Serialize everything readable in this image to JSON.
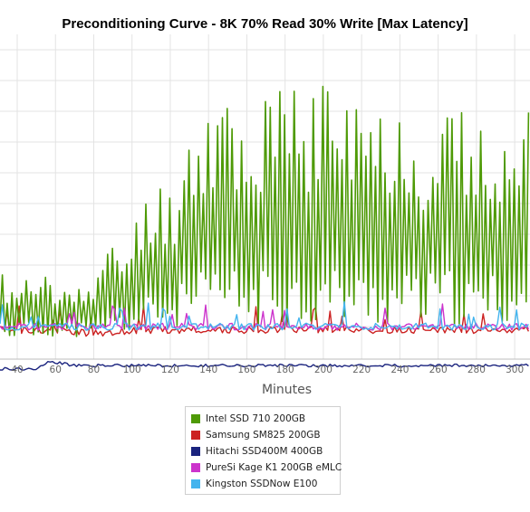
{
  "chart_data": {
    "type": "line",
    "title": "Preconditioning Curve - 8K 70% Read 30% Write [Max Latency]",
    "xlabel": "Minutes",
    "ylabel": "",
    "x_ticks": [
      40,
      60,
      80,
      100,
      120,
      140,
      160,
      180,
      200,
      220,
      240,
      260,
      280,
      300
    ],
    "xlim": [
      31,
      308
    ],
    "ylim": [
      0,
      100
    ],
    "grid": true,
    "legend_position": "bottom-center",
    "series": [
      {
        "name": "Intel SSD 710 200GB",
        "color": "#4e9a06",
        "x": [
          31,
          37,
          43,
          49,
          55,
          61,
          67,
          73,
          79,
          85,
          91,
          97,
          103,
          109,
          115,
          121,
          127,
          133,
          139,
          145,
          151,
          157,
          163,
          169,
          175,
          181,
          187,
          193,
          199,
          205,
          211,
          217,
          223,
          229,
          235,
          241,
          247,
          253,
          259,
          265,
          271,
          277,
          283,
          289,
          295,
          301,
          307
        ],
        "high": [
          28,
          22,
          26,
          24,
          27,
          20,
          25,
          27,
          22,
          31,
          38,
          35,
          45,
          57,
          56,
          52,
          68,
          80,
          79,
          85,
          88,
          78,
          73,
          82,
          83,
          83,
          86,
          80,
          92,
          88,
          82,
          81,
          76,
          82,
          81,
          80,
          72,
          73,
          83,
          84,
          80,
          66,
          72,
          78,
          74,
          72,
          78
        ],
        "low": [
          8,
          6,
          8,
          6,
          7,
          7,
          6,
          7,
          6,
          8,
          7,
          8,
          8,
          8,
          9,
          9,
          10,
          9,
          10,
          11,
          10,
          10,
          10,
          10,
          11,
          10,
          10,
          9,
          9,
          10,
          10,
          10,
          10,
          10,
          9,
          10,
          11,
          10,
          10,
          9,
          10,
          10,
          10,
          10,
          10,
          10,
          10
        ]
      },
      {
        "name": "Samsung SM825 200GB",
        "color": "#cc2222",
        "x": [
          31,
          59,
          79,
          109,
          141,
          167,
          189,
          211,
          237,
          263,
          289,
          307
        ],
        "values": [
          9,
          9,
          8,
          9,
          9,
          9,
          9,
          9,
          9,
          9,
          9,
          9
        ]
      },
      {
        "name": "Hitachi SSD400M 400GB",
        "color": "#1a237e",
        "x": [
          31,
          40,
          50,
          55,
          60,
          70,
          80,
          100,
          140,
          180,
          220,
          260,
          300,
          307
        ],
        "values": [
          -3,
          -3,
          -3,
          -1,
          -1,
          -2,
          -2,
          -2,
          -2,
          -2,
          -2,
          -2,
          -2,
          -2
        ]
      },
      {
        "name": "PureSi Kage K1 200GB eMLC",
        "color": "#cc33cc",
        "x": [
          31,
          59,
          91,
          121,
          161,
          201,
          241,
          281,
          307
        ],
        "values": [
          10,
          10,
          10,
          10,
          10,
          10,
          10,
          10,
          10
        ]
      },
      {
        "name": "Kingston SSDNow E100",
        "color": "#44b4ee",
        "x": [
          31,
          59,
          91,
          121,
          161,
          201,
          241,
          281,
          307
        ],
        "values": [
          10,
          10,
          10,
          10,
          10,
          10,
          10,
          10,
          10
        ]
      }
    ]
  }
}
